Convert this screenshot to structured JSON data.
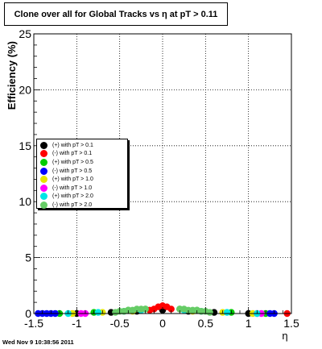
{
  "chart_data": {
    "type": "scatter",
    "title": "Clone  over all for Global Tracks vs η at pT > 0.11",
    "xlabel": "η",
    "ylabel": "Efficiency (%)",
    "xlim": [
      -1.5,
      1.5
    ],
    "ylim": [
      0,
      25
    ],
    "x_ticks": [
      "-1.5",
      "-1",
      "-0.5",
      "0",
      "0.5",
      "1",
      "1.5"
    ],
    "y_ticks": [
      "0",
      "5",
      "10",
      "15",
      "20",
      "25"
    ],
    "grid": true,
    "legend_position": "left",
    "series": [
      {
        "name": "(+) with pT > 0.1",
        "color": "#000000",
        "x": [
          -1.0,
          -0.6,
          -0.3,
          0.0,
          0.3,
          0.6,
          1.0
        ],
        "y": [
          0.0,
          0.1,
          0.2,
          0.3,
          0.2,
          0.1,
          0.0
        ]
      },
      {
        "name": "(-) with pT > 0.1",
        "color": "#ff0000",
        "x": [
          -0.15,
          -0.1,
          -0.05,
          0.0,
          0.05,
          0.1,
          1.45
        ],
        "y": [
          0.3,
          0.4,
          0.6,
          0.7,
          0.6,
          0.4,
          0.0
        ]
      },
      {
        "name": "(+) with pT > 0.5",
        "color": "#00cc00",
        "x": [
          -1.2,
          -0.8,
          -0.4,
          -0.2,
          0.2,
          0.4,
          0.8,
          1.2
        ],
        "y": [
          0.0,
          0.1,
          0.3,
          0.4,
          0.4,
          0.3,
          0.1,
          0.0
        ]
      },
      {
        "name": "(-) with pT > 0.5",
        "color": "#0000ff",
        "x": [
          -1.45,
          -1.4,
          -1.35,
          -1.3,
          -1.25,
          1.25,
          1.3
        ],
        "y": [
          0.0,
          0.0,
          0.0,
          0.0,
          0.0,
          0.0,
          0.0
        ]
      },
      {
        "name": "(+) with pT > 1.0",
        "color": "#e6e600",
        "x": [
          -1.05,
          -0.7,
          -0.35,
          0.35,
          0.7,
          1.05
        ],
        "y": [
          0.0,
          0.1,
          0.2,
          0.2,
          0.1,
          0.0
        ]
      },
      {
        "name": "(-) with pT > 1.0",
        "color": "#ff00ff",
        "x": [
          -0.95,
          -0.9,
          1.1,
          1.15
        ],
        "y": [
          0.0,
          0.0,
          0.0,
          0.0
        ]
      },
      {
        "name": "(+) with pT > 2.0",
        "color": "#00e6e6",
        "x": [
          -1.1,
          -0.75,
          -0.45,
          -0.25,
          0.25,
          0.45,
          0.75,
          1.1
        ],
        "y": [
          0.0,
          0.1,
          0.2,
          0.3,
          0.3,
          0.2,
          0.1,
          0.0
        ]
      },
      {
        "name": "(-) with pT > 2.0",
        "color": "#66cc66",
        "x": [
          -0.55,
          -0.5,
          -0.45,
          -0.4,
          -0.35,
          -0.3,
          -0.25,
          -0.2,
          0.2,
          0.25,
          0.3,
          0.35,
          0.4,
          0.45,
          0.5,
          0.55
        ],
        "y": [
          0.1,
          0.2,
          0.2,
          0.3,
          0.3,
          0.4,
          0.4,
          0.4,
          0.4,
          0.4,
          0.3,
          0.3,
          0.3,
          0.2,
          0.2,
          0.1
        ]
      }
    ]
  },
  "footer_text": "Wed Nov  9 10:38:56 2011"
}
